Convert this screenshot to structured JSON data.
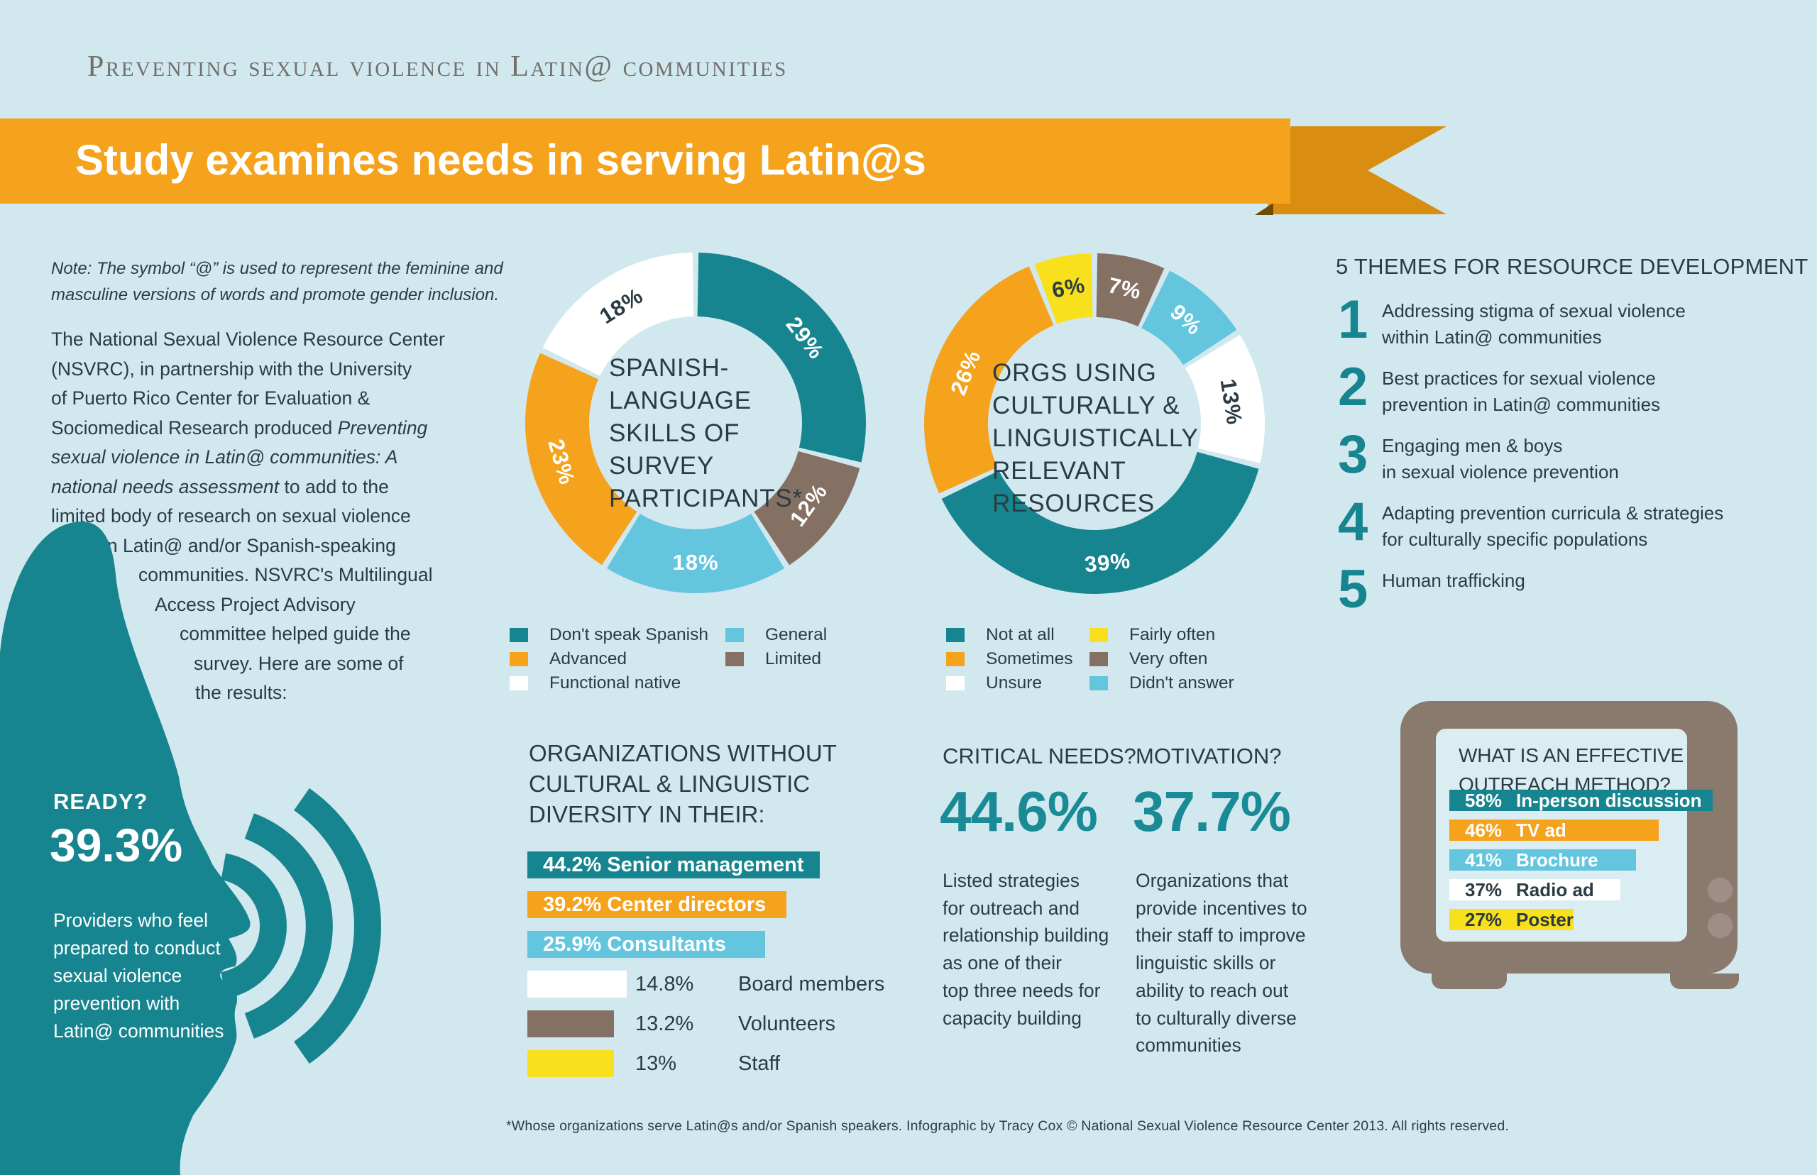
{
  "page": {
    "bg_color": "#d2e8ef",
    "accent_teal": "#17858f",
    "accent_orange": "#f5a21c",
    "accent_blue": "#63c5de",
    "accent_brown": "#857164",
    "accent_yellow": "#f8e11c",
    "eyebrow": "Preventing sexual violence in Latin@ communities",
    "banner_title": "Study examines needs in serving Latin@s",
    "footer": "*Whose organizations serve Latin@s and/or Spanish speakers. Infographic by Tracy Cox   © National Sexual Violence Resource Center 2013. All rights reserved."
  },
  "note": {
    "line1": "Note: The symbol “@” is used to represent the feminine and",
    "line2": "masculine versions of words and promote gender inclusion."
  },
  "intro": {
    "lines": [
      {
        "pre": "The National Sexual Violence Resource Center"
      },
      {
        "pre": "(NSVRC), in partnership with the University"
      },
      {
        "pre": "of Puerto Rico Center for Evaluation &"
      },
      {
        "pre": "Sociomedical Research produced ",
        "em": "Preventing"
      },
      {
        "em": "sexual violence in Latin@ communities: A"
      },
      {
        "em": "national needs assessment",
        "post": " to add to the"
      },
      {
        "pre": "limited body of research on sexual violence"
      },
      {
        "pre": "in Latin@ and/or Spanish-speaking"
      },
      {
        "pre": "communities. NSVRC's Multilingual"
      },
      {
        "pre": "Access Project Advisory"
      },
      {
        "pre": "committee helped guide the"
      },
      {
        "pre": "survey. Here are some of"
      },
      {
        "pre": "the results:"
      }
    ]
  },
  "ready": {
    "title": "READY?",
    "stat": "39.3%",
    "lines": [
      "Providers who feel",
      "prepared to conduct",
      "sexual violence",
      "prevention with",
      "Latin@ communities"
    ]
  },
  "themes": {
    "title": "5 THEMES FOR RESOURCE DEVELOPMENT",
    "items": [
      {
        "num": "1",
        "lines": [
          "Addressing stigma of sexual violence",
          "within Latin@ communities"
        ]
      },
      {
        "num": "2",
        "lines": [
          "Best practices for sexual violence",
          "prevention in Latin@ communities"
        ]
      },
      {
        "num": "3",
        "lines": [
          "Engaging men & boys",
          "in sexual violence prevention"
        ]
      },
      {
        "num": "4",
        "lines": [
          "Adapting prevention curricula & strategies",
          "for culturally specific populations"
        ]
      },
      {
        "num": "5",
        "lines": [
          "Human trafficking"
        ]
      }
    ]
  },
  "critical": {
    "title": "CRITICAL NEEDS?",
    "stat": "44.6%",
    "lines": [
      "Listed strategies",
      "for outreach and",
      "relationship building",
      "as one of their",
      "top three needs for",
      "capacity building"
    ]
  },
  "motivation": {
    "title": "MOTIVATION?",
    "stat": "37.7%",
    "lines": [
      "Organizations that",
      "provide incentives to",
      "their staff to improve",
      "linguistic skills or",
      "ability to reach out",
      "to culturally diverse",
      "communities"
    ]
  },
  "chart_data": [
    {
      "type": "pie",
      "title": "SPANISH-LANGUAGE SKILLS OF SURVEY PARTICIPANTS*",
      "title_lines": [
        "SPANISH-",
        "LANGUAGE",
        "SKILLS OF",
        "SURVEY",
        "PARTICIPANTS*"
      ],
      "unit": "%",
      "slices": [
        {
          "label": "Don't speak Spanish",
          "value": 29,
          "color": "#17858f",
          "label_color": "#ffffff"
        },
        {
          "label": "Limited",
          "value": 12,
          "color": "#857164",
          "label_color": "#ffffff"
        },
        {
          "label": "General",
          "value": 18,
          "color": "#63c5de",
          "label_color": "#ffffff"
        },
        {
          "label": "Advanced",
          "value": 23,
          "color": "#f5a21c",
          "label_color": "#ffffff"
        },
        {
          "label": "Functional native",
          "value": 18,
          "color": "#ffffff",
          "label_color": "#2b3b44"
        }
      ],
      "legend": {
        "col1": [
          {
            "label": "Don't speak Spanish",
            "color": "#17858f"
          },
          {
            "label": "Advanced",
            "color": "#f5a21c"
          },
          {
            "label": "Functional native",
            "color": "#ffffff"
          }
        ],
        "col2": [
          {
            "label": "General",
            "color": "#63c5de"
          },
          {
            "label": "Limited",
            "color": "#857164"
          }
        ]
      }
    },
    {
      "type": "pie",
      "title": "ORGS USING CULTURALLY & LINGUISTICALLY RELEVANT RESOURCES",
      "title_lines": [
        "ORGS USING",
        "CULTURALLY &",
        "LINGUISTICALLY",
        "RELEVANT",
        "RESOURCES"
      ],
      "unit": "%",
      "slices": [
        {
          "label": "Very often",
          "value": 7,
          "color": "#857164",
          "label_color": "#ffffff"
        },
        {
          "label": "Didn't answer",
          "value": 9,
          "color": "#63c5de",
          "label_color": "#ffffff"
        },
        {
          "label": "Unsure",
          "value": 13,
          "color": "#ffffff",
          "label_color": "#2b3b44"
        },
        {
          "label": "Not at all",
          "value": 39,
          "color": "#17858f",
          "label_color": "#ffffff"
        },
        {
          "label": "Sometimes",
          "value": 26,
          "color": "#f5a21c",
          "label_color": "#ffffff"
        },
        {
          "label": "Fairly often",
          "value": 6,
          "color": "#f8e11c",
          "label_color": "#2b3b44"
        }
      ],
      "legend": {
        "col1": [
          {
            "label": "Not at all",
            "color": "#17858f"
          },
          {
            "label": "Sometimes",
            "color": "#f5a21c"
          },
          {
            "label": "Unsure",
            "color": "#ffffff"
          }
        ],
        "col2": [
          {
            "label": "Fairly often",
            "color": "#f8e11c"
          },
          {
            "label": "Very often",
            "color": "#857164"
          },
          {
            "label": "Didn't answer",
            "color": "#63c5de"
          }
        ]
      }
    },
    {
      "type": "bar",
      "title": "ORGANIZATIONS WITHOUT CULTURAL & LINGUISTIC DIVERSITY IN THEIR:",
      "title_lines": [
        "ORGANIZATIONS WITHOUT",
        "CULTURAL & LINGUISTIC",
        "DIVERSITY IN THEIR:"
      ],
      "unit": "%",
      "items": [
        {
          "pct": "44.2%",
          "label": "Senior management",
          "value": 44.2,
          "color": "#17858f",
          "inside": true
        },
        {
          "pct": "39.2%",
          "label": "Center directors",
          "value": 39.2,
          "color": "#f5a21c",
          "inside": true
        },
        {
          "pct": "25.9%",
          "label": "Consultants",
          "value": 25.9,
          "color": "#63c5de",
          "inside": true
        },
        {
          "pct": "14.8%",
          "label": "Board members",
          "value": 14.8,
          "color": "#ffffff",
          "inside": false
        },
        {
          "pct": "13.2%",
          "label": "Volunteers",
          "value": 13.2,
          "color": "#857164",
          "inside": false
        },
        {
          "pct": "13%",
          "label": "Staff",
          "value": 13,
          "color": "#f8e11c",
          "inside": false
        }
      ]
    },
    {
      "type": "bar",
      "title": "WHAT IS AN EFFECTIVE OUTREACH METHOD?",
      "title_lines": [
        "WHAT IS AN EFFECTIVE",
        "OUTREACH METHOD?"
      ],
      "unit": "%",
      "items": [
        {
          "pct": "58%",
          "label": "In-person discussion",
          "value": 58,
          "color": "#17858f",
          "text": "#ffffff"
        },
        {
          "pct": "46%",
          "label": "TV ad",
          "value": 46,
          "color": "#f5a21c",
          "text": "#ffffff"
        },
        {
          "pct": "41%",
          "label": "Brochure",
          "value": 41,
          "color": "#63c5de",
          "text": "#ffffff"
        },
        {
          "pct": "37%",
          "label": "Radio ad",
          "value": 37,
          "color": "#ffffff",
          "text": "#2b3b44"
        },
        {
          "pct": "27%",
          "label": "Poster",
          "value": 27,
          "color": "#f8e11c",
          "text": "#2b3b44"
        }
      ]
    }
  ]
}
